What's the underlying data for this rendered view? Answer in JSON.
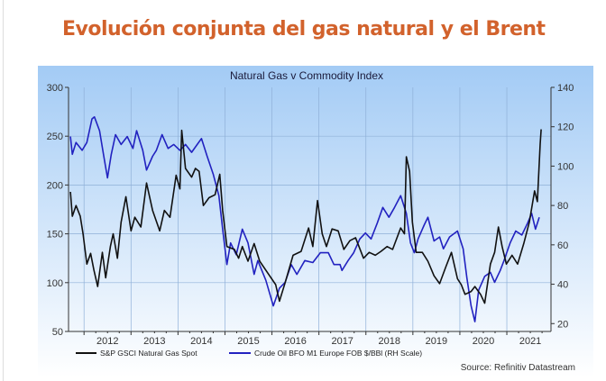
{
  "headline": "Evolución conjunta del gas natural y el Brent",
  "chart_data": {
    "type": "line",
    "title": "Natural Gas v Commodity Index",
    "source": "Source: Refinitiv Datastream",
    "xlim": [
      2011.67,
      2021.94
    ],
    "x_ticks": [
      "2012",
      "2013",
      "2014",
      "2015",
      "2016",
      "2017",
      "2018",
      "2019",
      "2020",
      "2021"
    ],
    "ylim_left": [
      50,
      300
    ],
    "y_ticks_left": [
      50,
      100,
      150,
      200,
      250,
      300
    ],
    "ylim_right": [
      16,
      140
    ],
    "y_ticks_right": [
      20,
      40,
      60,
      80,
      100,
      120,
      140
    ],
    "grid": true,
    "legend_position": "bottom",
    "colors": {
      "gas": "#111111",
      "oil": "#2222c0",
      "bg_top": "#a3cbf5",
      "bg_bottom": "#ffffff",
      "headline": "#d2622c"
    },
    "series": [
      {
        "name": "S&P GSCI Natural Gas Spot",
        "axis": "left",
        "points": [
          [
            2011.71,
            193
          ],
          [
            2011.75,
            168
          ],
          [
            2011.83,
            179
          ],
          [
            2011.92,
            168
          ],
          [
            2011.98,
            150
          ],
          [
            2012.06,
            119
          ],
          [
            2012.14,
            130
          ],
          [
            2012.21,
            113
          ],
          [
            2012.29,
            96
          ],
          [
            2012.39,
            131
          ],
          [
            2012.46,
            105
          ],
          [
            2012.56,
            137
          ],
          [
            2012.62,
            150
          ],
          [
            2012.71,
            125
          ],
          [
            2012.79,
            162
          ],
          [
            2012.89,
            188
          ],
          [
            2013.0,
            153
          ],
          [
            2013.08,
            167
          ],
          [
            2013.21,
            157
          ],
          [
            2013.33,
            202
          ],
          [
            2013.46,
            174
          ],
          [
            2013.61,
            153
          ],
          [
            2013.71,
            174
          ],
          [
            2013.83,
            167
          ],
          [
            2013.96,
            210
          ],
          [
            2014.04,
            196
          ],
          [
            2014.08,
            256
          ],
          [
            2014.16,
            217
          ],
          [
            2014.29,
            208
          ],
          [
            2014.37,
            217
          ],
          [
            2014.45,
            214
          ],
          [
            2014.54,
            179
          ],
          [
            2014.66,
            187
          ],
          [
            2014.79,
            190
          ],
          [
            2014.89,
            211
          ],
          [
            2014.95,
            174
          ],
          [
            2015.04,
            137
          ],
          [
            2015.2,
            134
          ],
          [
            2015.29,
            125
          ],
          [
            2015.37,
            137
          ],
          [
            2015.49,
            122
          ],
          [
            2015.62,
            140
          ],
          [
            2015.74,
            122
          ],
          [
            2015.95,
            107
          ],
          [
            2016.08,
            98
          ],
          [
            2016.16,
            81
          ],
          [
            2016.28,
            100
          ],
          [
            2016.45,
            128
          ],
          [
            2016.62,
            132
          ],
          [
            2016.78,
            156
          ],
          [
            2016.87,
            137
          ],
          [
            2016.97,
            184
          ],
          [
            2017.07,
            150
          ],
          [
            2017.16,
            137
          ],
          [
            2017.28,
            155
          ],
          [
            2017.41,
            153
          ],
          [
            2017.53,
            134
          ],
          [
            2017.66,
            143
          ],
          [
            2017.78,
            146
          ],
          [
            2017.95,
            125
          ],
          [
            2018.07,
            131
          ],
          [
            2018.2,
            128
          ],
          [
            2018.32,
            132
          ],
          [
            2018.45,
            137
          ],
          [
            2018.57,
            134
          ],
          [
            2018.74,
            156
          ],
          [
            2018.82,
            150
          ],
          [
            2018.86,
            229
          ],
          [
            2018.93,
            214
          ],
          [
            2018.99,
            162
          ],
          [
            2019.07,
            131
          ],
          [
            2019.2,
            131
          ],
          [
            2019.32,
            122
          ],
          [
            2019.45,
            107
          ],
          [
            2019.57,
            99
          ],
          [
            2019.7,
            116
          ],
          [
            2019.82,
            131
          ],
          [
            2019.95,
            104
          ],
          [
            2020.03,
            98
          ],
          [
            2020.11,
            88
          ],
          [
            2020.24,
            91
          ],
          [
            2020.32,
            96
          ],
          [
            2020.44,
            88
          ],
          [
            2020.53,
            79
          ],
          [
            2020.65,
            119
          ],
          [
            2020.74,
            131
          ],
          [
            2020.82,
            157
          ],
          [
            2020.9,
            137
          ],
          [
            2020.99,
            119
          ],
          [
            2021.11,
            128
          ],
          [
            2021.23,
            119
          ],
          [
            2021.36,
            140
          ],
          [
            2021.48,
            162
          ],
          [
            2021.59,
            194
          ],
          [
            2021.65,
            183
          ],
          [
            2021.71,
            242
          ],
          [
            2021.73,
            257
          ]
        ]
      },
      {
        "name": "Crude Oil BFO M1 Europe FOB $/BBl (RH Scale)",
        "axis": "right",
        "points": [
          [
            2011.71,
            115
          ],
          [
            2011.75,
            106
          ],
          [
            2011.83,
            112
          ],
          [
            2011.96,
            108
          ],
          [
            2012.06,
            112
          ],
          [
            2012.17,
            124
          ],
          [
            2012.22,
            125
          ],
          [
            2012.33,
            118
          ],
          [
            2012.42,
            105
          ],
          [
            2012.5,
            94
          ],
          [
            2012.58,
            106
          ],
          [
            2012.67,
            116
          ],
          [
            2012.79,
            111
          ],
          [
            2012.92,
            115
          ],
          [
            2013.04,
            109
          ],
          [
            2013.12,
            118
          ],
          [
            2013.25,
            108
          ],
          [
            2013.33,
            98
          ],
          [
            2013.46,
            105
          ],
          [
            2013.54,
            108
          ],
          [
            2013.66,
            116
          ],
          [
            2013.79,
            109
          ],
          [
            2013.91,
            111
          ],
          [
            2014.04,
            108
          ],
          [
            2014.16,
            111
          ],
          [
            2014.29,
            107
          ],
          [
            2014.41,
            111
          ],
          [
            2014.5,
            114
          ],
          [
            2014.62,
            105
          ],
          [
            2014.75,
            96
          ],
          [
            2014.87,
            85
          ],
          [
            2014.95,
            68
          ],
          [
            2015.04,
            50
          ],
          [
            2015.12,
            61
          ],
          [
            2015.24,
            55
          ],
          [
            2015.37,
            68
          ],
          [
            2015.49,
            61
          ],
          [
            2015.62,
            45
          ],
          [
            2015.7,
            52
          ],
          [
            2015.87,
            42
          ],
          [
            2016.03,
            29
          ],
          [
            2016.16,
            38
          ],
          [
            2016.28,
            41
          ],
          [
            2016.41,
            50
          ],
          [
            2016.53,
            45
          ],
          [
            2016.7,
            52
          ],
          [
            2016.87,
            51
          ],
          [
            2017.03,
            56
          ],
          [
            2017.2,
            56
          ],
          [
            2017.32,
            50
          ],
          [
            2017.45,
            50
          ],
          [
            2017.49,
            47
          ],
          [
            2017.62,
            52
          ],
          [
            2017.74,
            56
          ],
          [
            2017.87,
            63
          ],
          [
            2017.99,
            66
          ],
          [
            2018.11,
            63
          ],
          [
            2018.24,
            71
          ],
          [
            2018.36,
            79
          ],
          [
            2018.49,
            74
          ],
          [
            2018.61,
            79
          ],
          [
            2018.74,
            85
          ],
          [
            2018.86,
            76
          ],
          [
            2018.95,
            61
          ],
          [
            2019.03,
            56
          ],
          [
            2019.11,
            63
          ],
          [
            2019.24,
            70
          ],
          [
            2019.32,
            74
          ],
          [
            2019.45,
            62
          ],
          [
            2019.57,
            64
          ],
          [
            2019.65,
            58
          ],
          [
            2019.78,
            64
          ],
          [
            2019.95,
            67
          ],
          [
            2020.07,
            58
          ],
          [
            2020.15,
            43
          ],
          [
            2020.24,
            29
          ],
          [
            2020.32,
            21
          ],
          [
            2020.4,
            37
          ],
          [
            2020.53,
            44
          ],
          [
            2020.65,
            46
          ],
          [
            2020.74,
            41
          ],
          [
            2020.86,
            47
          ],
          [
            2020.94,
            52
          ],
          [
            2021.07,
            61
          ],
          [
            2021.19,
            67
          ],
          [
            2021.32,
            65
          ],
          [
            2021.44,
            71
          ],
          [
            2021.53,
            76
          ],
          [
            2021.61,
            68
          ],
          [
            2021.69,
            74
          ]
        ]
      }
    ]
  }
}
